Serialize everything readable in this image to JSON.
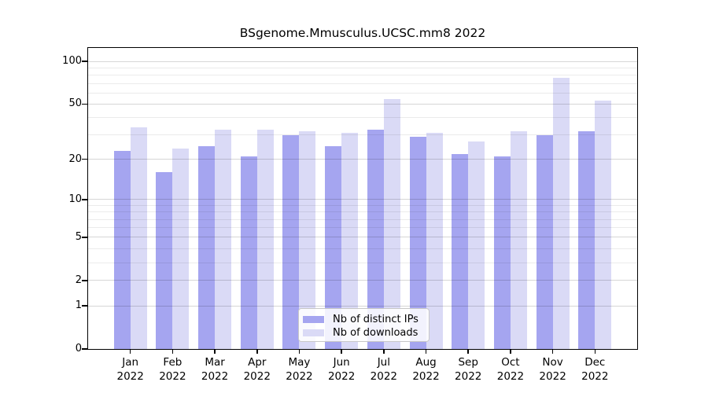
{
  "title": "BSgenome.Mmusculus.UCSC.mm8 2022",
  "colors": {
    "distinct_ips_bar": "#a5a5f0",
    "downloads_bar": "#dadaf6",
    "axis": "#000000",
    "major_grid": "rgba(0,0,0,0.16)",
    "minor_grid": "rgba(0,0,0,0.08)"
  },
  "legend": {
    "items": [
      {
        "label": "Nb of distinct IPs",
        "color_key": "distinct_ips_bar"
      },
      {
        "label": "Nb of downloads",
        "color_key": "downloads_bar"
      }
    ]
  },
  "chart_data": {
    "type": "bar",
    "title": "BSgenome.Mmusculus.UCSC.mm8 2022",
    "categories": [
      "Jan 2022",
      "Feb 2022",
      "Mar 2022",
      "Apr 2022",
      "May 2022",
      "Jun 2022",
      "Jul 2022",
      "Aug 2022",
      "Sep 2022",
      "Oct 2022",
      "Nov 2022",
      "Dec 2022"
    ],
    "series": [
      {
        "name": "Nb of distinct IPs",
        "values": [
          23,
          16,
          25,
          21,
          30,
          25,
          33,
          29,
          22,
          21,
          30,
          32
        ]
      },
      {
        "name": "Nb of downloads",
        "values": [
          34,
          24,
          33,
          33,
          32,
          31,
          54,
          31,
          27,
          32,
          77,
          53
        ]
      }
    ],
    "xlabel": "",
    "ylabel": "",
    "y_scale": "log10(value+1)",
    "y_major_ticks": [
      0,
      1,
      2,
      5,
      10,
      20,
      50,
      100
    ],
    "y_minor_gridlines": [
      3,
      4,
      6,
      7,
      8,
      9,
      30,
      40,
      60,
      70,
      80,
      90
    ],
    "ylim": [
      0,
      125
    ],
    "grid": true,
    "legend_position": "inside-bottom-center"
  }
}
